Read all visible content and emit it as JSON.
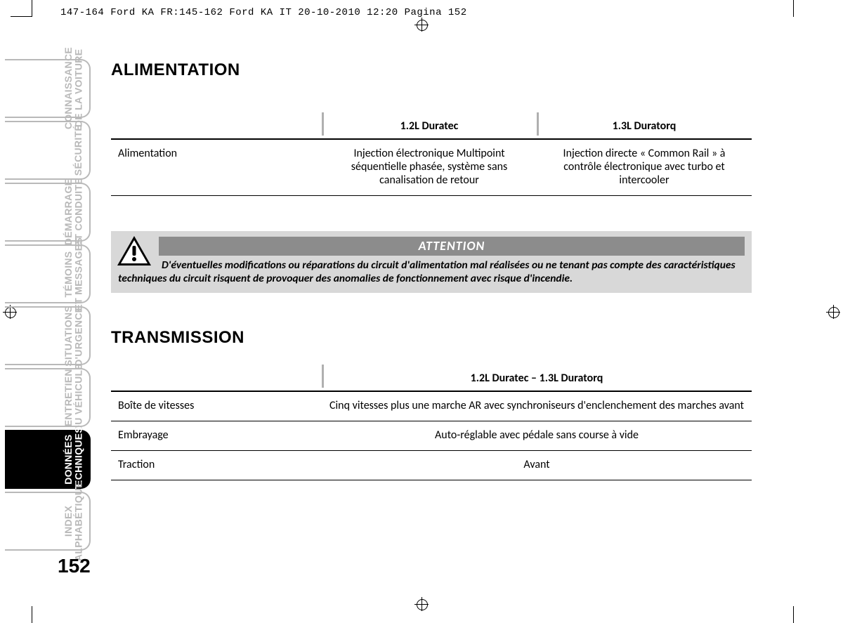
{
  "header": "147-164 Ford KA FR:145-162 Ford KA IT  20-10-2010  12:20  Pagina 152",
  "page_number": "152",
  "tabs": [
    "CONNAISSANCE\nDE LA VOITURE",
    "SÉCURITÉ",
    "DÉMARRAGE\nET CONDUITE",
    "TÉMOINS\nET MESSAGES",
    "SITUATIONS\nD'URGENCE",
    "ENTRETIEN\nDU VÉHICULE",
    "DONNÉES\nTECHNIQUES",
    "INDEX\nALPHABÉTIQUE"
  ],
  "active_tab_index": 6,
  "section1": {
    "title": "ALIMENTATION",
    "col_engine1": "1.2L Duratec",
    "col_engine2": "1.3L Duratorq",
    "row_label": "Alimentation",
    "val1": "Injection électronique Multipoint séquentielle phasée, système sans canalisation de retour",
    "val2": "Injection directe « Common Rail » à contrôle électronique avec turbo et intercooler"
  },
  "attention": {
    "title": "ATTENTION",
    "body": "D'éventuelles modifications ou réparations du circuit d'alimentation mal réalisées ou ne tenant pas compte des caractéristiques techniques du circuit risquent de provoquer des anomalies de fonctionnement avec risque d'incendie."
  },
  "section2": {
    "title": "TRANSMISSION",
    "col_header": "1.2L Duratec – 1.3L Duratorq",
    "rows": [
      {
        "label": "Boîte de vitesses",
        "val": "Cinq vitesses plus une marche AR avec synchroniseurs d'enclenchement des marches avant"
      },
      {
        "label": "Embrayage",
        "val": "Auto-réglable avec pédale sans course à vide"
      },
      {
        "label": "Traction",
        "val": "Avant"
      }
    ]
  }
}
